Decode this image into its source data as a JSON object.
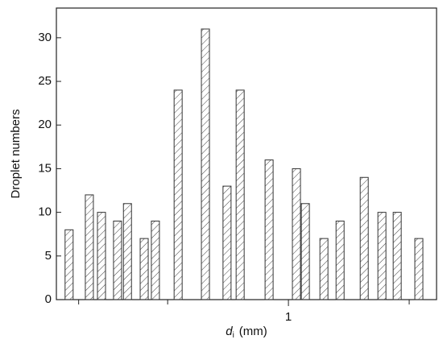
{
  "chart_data": {
    "type": "bar",
    "ylabel": "Droplet numbers",
    "xlabel": {
      "symbol": "d",
      "subscript": "i",
      "unit": "(mm)"
    },
    "x": [
      0.284,
      0.319,
      0.342,
      0.375,
      0.397,
      0.437,
      0.466,
      0.531,
      0.621,
      0.703,
      0.758,
      0.895,
      1.047,
      1.102,
      1.226,
      1.345,
      1.545,
      1.71,
      1.867,
      2.114
    ],
    "values": [
      8,
      12,
      10,
      9,
      11,
      7,
      9,
      24,
      31,
      13,
      24,
      16,
      15,
      11,
      7,
      9,
      14,
      10,
      10,
      7
    ],
    "xscale": "log",
    "xlim": [
      0.264,
      2.34
    ],
    "xticks": [
      1
    ],
    "xminorticks": [
      0.3,
      0.5,
      2
    ],
    "ylim": [
      0,
      33.4
    ],
    "yticks": [
      0,
      5,
      10,
      15,
      20,
      25,
      30
    ],
    "color": "#333333"
  }
}
